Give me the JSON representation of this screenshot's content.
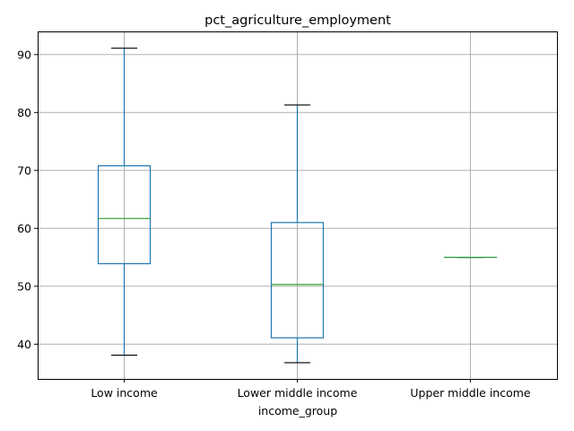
{
  "chart_data": {
    "type": "box",
    "title": "pct_agriculture_employment",
    "xlabel": "income_group",
    "ylabel": "",
    "categories": [
      "Low income",
      "Lower middle income",
      "Upper middle income"
    ],
    "boxes": [
      {
        "category": "Low income",
        "whisker_low": 38.1,
        "q1": 53.9,
        "median": 61.7,
        "q3": 70.8,
        "whisker_high": 91.1
      },
      {
        "category": "Lower middle income",
        "whisker_low": 36.8,
        "q1": 41.1,
        "median": 50.3,
        "q3": 61.0,
        "whisker_high": 81.3
      },
      {
        "category": "Upper middle income",
        "whisker_low": 55.0,
        "q1": 55.0,
        "median": 55.0,
        "q3": 55.0,
        "whisker_high": 55.0
      }
    ],
    "yticks": [
      40,
      50,
      60,
      70,
      80,
      90
    ],
    "ylim": [
      34.0,
      94.0
    ],
    "grid": true,
    "colors": {
      "box": "#1f77b4",
      "median": "#2ca02c",
      "cap": "#000000",
      "grid": "#b0b0b0"
    }
  }
}
